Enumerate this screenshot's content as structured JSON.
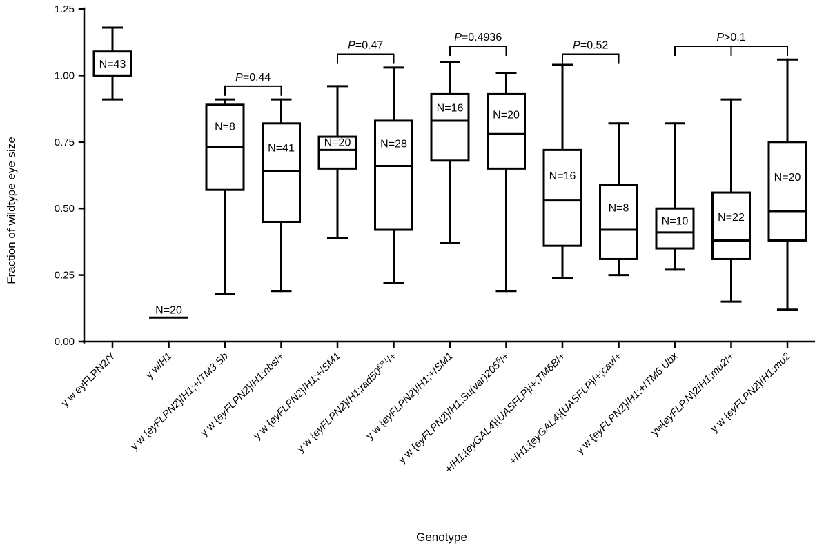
{
  "chart_data": {
    "type": "box",
    "xlabel": "Genotype",
    "ylabel": "Fraction of wildtype eye size",
    "ylim": [
      0,
      1.25
    ],
    "yticks": [
      "0.00",
      "0.25",
      "0.50",
      "0.75",
      "1.00",
      "1.25"
    ],
    "grid": false,
    "categories": [
      [
        {
          "t": "y w eyFLPN2/Y",
          "i": false
        }
      ],
      [
        {
          "t": "y w/",
          "i": false
        },
        {
          "t": "H1",
          "i": true
        }
      ],
      [
        {
          "t": "y w {",
          "i": false
        },
        {
          "t": "eyFLPN2",
          "i": true
        },
        {
          "t": "}/",
          "i": false
        },
        {
          "t": "H1",
          "i": true
        },
        {
          "t": ";+/",
          "i": false
        },
        {
          "t": "TM3 Sb",
          "i": true
        }
      ],
      [
        {
          "t": "y w {",
          "i": false
        },
        {
          "t": "eyFLPN2",
          "i": true
        },
        {
          "t": "}/",
          "i": false
        },
        {
          "t": "H1",
          "i": true
        },
        {
          "t": ";",
          "i": false
        },
        {
          "t": "nbs",
          "i": true
        },
        {
          "t": "/+",
          "i": false
        }
      ],
      [
        {
          "t": "y w {",
          "i": false
        },
        {
          "t": "eyFLPN2",
          "i": true
        },
        {
          "t": "}/",
          "i": false
        },
        {
          "t": "H1",
          "i": true
        },
        {
          "t": ";+/",
          "i": false
        },
        {
          "t": "SM1",
          "i": true
        }
      ],
      [
        {
          "t": "y w {",
          "i": false
        },
        {
          "t": "eyFLPN2",
          "i": true
        },
        {
          "t": "}/",
          "i": false
        },
        {
          "t": "H1",
          "i": true
        },
        {
          "t": ";",
          "i": false
        },
        {
          "t": "rad50",
          "i": true
        },
        {
          "t": "EP1",
          "i": true,
          "sup": true
        },
        {
          "t": "/+",
          "i": false
        }
      ],
      [
        {
          "t": "y w {",
          "i": false
        },
        {
          "t": "eyFLPN2",
          "i": true
        },
        {
          "t": "}/",
          "i": false
        },
        {
          "t": "H1",
          "i": true
        },
        {
          "t": ";+/",
          "i": false
        },
        {
          "t": "SM1",
          "i": true
        }
      ],
      [
        {
          "t": "y w {",
          "i": false
        },
        {
          "t": "eyFLPN2",
          "i": true
        },
        {
          "t": "}/",
          "i": false
        },
        {
          "t": "H1",
          "i": true
        },
        {
          "t": ";",
          "i": false
        },
        {
          "t": "Su(var)205",
          "i": true
        },
        {
          "t": "5",
          "i": true,
          "sup": true
        },
        {
          "t": "/+",
          "i": false
        }
      ],
      [
        {
          "t": "+/",
          "i": false
        },
        {
          "t": "H1",
          "i": true
        },
        {
          "t": ";{",
          "i": false
        },
        {
          "t": "eyGAL4",
          "i": true
        },
        {
          "t": "}{",
          "i": false
        },
        {
          "t": "UASFLP",
          "i": true
        },
        {
          "t": "}/+;",
          "i": false
        },
        {
          "t": "TM6B",
          "i": true
        },
        {
          "t": "/+",
          "i": false
        }
      ],
      [
        {
          "t": "+/",
          "i": false
        },
        {
          "t": "H1",
          "i": true
        },
        {
          "t": ";{",
          "i": false
        },
        {
          "t": "eyGAL4",
          "i": true
        },
        {
          "t": "}{",
          "i": false
        },
        {
          "t": "UASFLP",
          "i": true
        },
        {
          "t": "}/+;",
          "i": false
        },
        {
          "t": "cav",
          "i": true
        },
        {
          "t": "/+",
          "i": false
        }
      ],
      [
        {
          "t": "y w {",
          "i": false
        },
        {
          "t": "eyFLPN2",
          "i": true
        },
        {
          "t": "}/",
          "i": false
        },
        {
          "t": "H1",
          "i": true
        },
        {
          "t": ";+/",
          "i": false
        },
        {
          "t": "TM6 Ubx",
          "i": true
        }
      ],
      [
        {
          "t": "yw{",
          "i": false
        },
        {
          "t": "eyFLP.N",
          "i": true
        },
        {
          "t": "}2/",
          "i": false
        },
        {
          "t": "H1",
          "i": true
        },
        {
          "t": ";",
          "i": false
        },
        {
          "t": "mu2",
          "i": true
        },
        {
          "t": "/+",
          "i": false
        }
      ],
      [
        {
          "t": "y w {",
          "i": false
        },
        {
          "t": "eyFLPN2",
          "i": true
        },
        {
          "t": "}/",
          "i": false
        },
        {
          "t": "H1",
          "i": true
        },
        {
          "t": ";",
          "i": false
        },
        {
          "t": "mu2",
          "i": true
        }
      ]
    ],
    "boxes": [
      {
        "min": 0.91,
        "q1": 1.0,
        "median": 1.0,
        "q3": 1.09,
        "max": 1.18,
        "n": "N=43"
      },
      {
        "min": 0.09,
        "q1": 0.09,
        "median": 0.09,
        "q3": 0.09,
        "max": 0.09,
        "n": "N=20"
      },
      {
        "min": 0.18,
        "q1": 0.57,
        "median": 0.73,
        "q3": 0.89,
        "max": 0.91,
        "n": "N=8"
      },
      {
        "min": 0.19,
        "q1": 0.45,
        "median": 0.64,
        "q3": 0.82,
        "max": 0.91,
        "n": "N=41"
      },
      {
        "min": 0.39,
        "q1": 0.65,
        "median": 0.72,
        "q3": 0.77,
        "max": 0.96,
        "n": "N=20"
      },
      {
        "min": 0.22,
        "q1": 0.42,
        "median": 0.66,
        "q3": 0.83,
        "max": 1.03,
        "n": "N=28"
      },
      {
        "min": 0.37,
        "q1": 0.68,
        "median": 0.83,
        "q3": 0.93,
        "max": 1.05,
        "n": "N=16"
      },
      {
        "min": 0.19,
        "q1": 0.65,
        "median": 0.78,
        "q3": 0.93,
        "max": 1.01,
        "n": "N=20"
      },
      {
        "min": 0.24,
        "q1": 0.36,
        "median": 0.53,
        "q3": 0.72,
        "max": 1.04,
        "n": "N=16"
      },
      {
        "min": 0.25,
        "q1": 0.31,
        "median": 0.42,
        "q3": 0.59,
        "max": 0.82,
        "n": "N=8"
      },
      {
        "min": 0.27,
        "q1": 0.35,
        "median": 0.41,
        "q3": 0.5,
        "max": 0.82,
        "n": "N=10"
      },
      {
        "min": 0.15,
        "q1": 0.31,
        "median": 0.38,
        "q3": 0.56,
        "max": 0.91,
        "n": "N=22"
      },
      {
        "min": 0.12,
        "q1": 0.38,
        "median": 0.49,
        "q3": 0.75,
        "max": 1.06,
        "n": "N=20"
      }
    ],
    "comparisons": [
      {
        "groups": [
          2,
          3
        ],
        "y": 0.96,
        "label": "=0.44"
      },
      {
        "groups": [
          4,
          5
        ],
        "y": 1.08,
        "label": "=0.47"
      },
      {
        "groups": [
          6,
          7
        ],
        "y": 1.11,
        "label": "=0.4936"
      },
      {
        "groups": [
          8,
          9
        ],
        "y": 1.08,
        "label": "=0.52"
      },
      {
        "groups": [
          10,
          11,
          12
        ],
        "y": 1.11,
        "label": ">0.1"
      }
    ],
    "p_symbol": "P"
  }
}
